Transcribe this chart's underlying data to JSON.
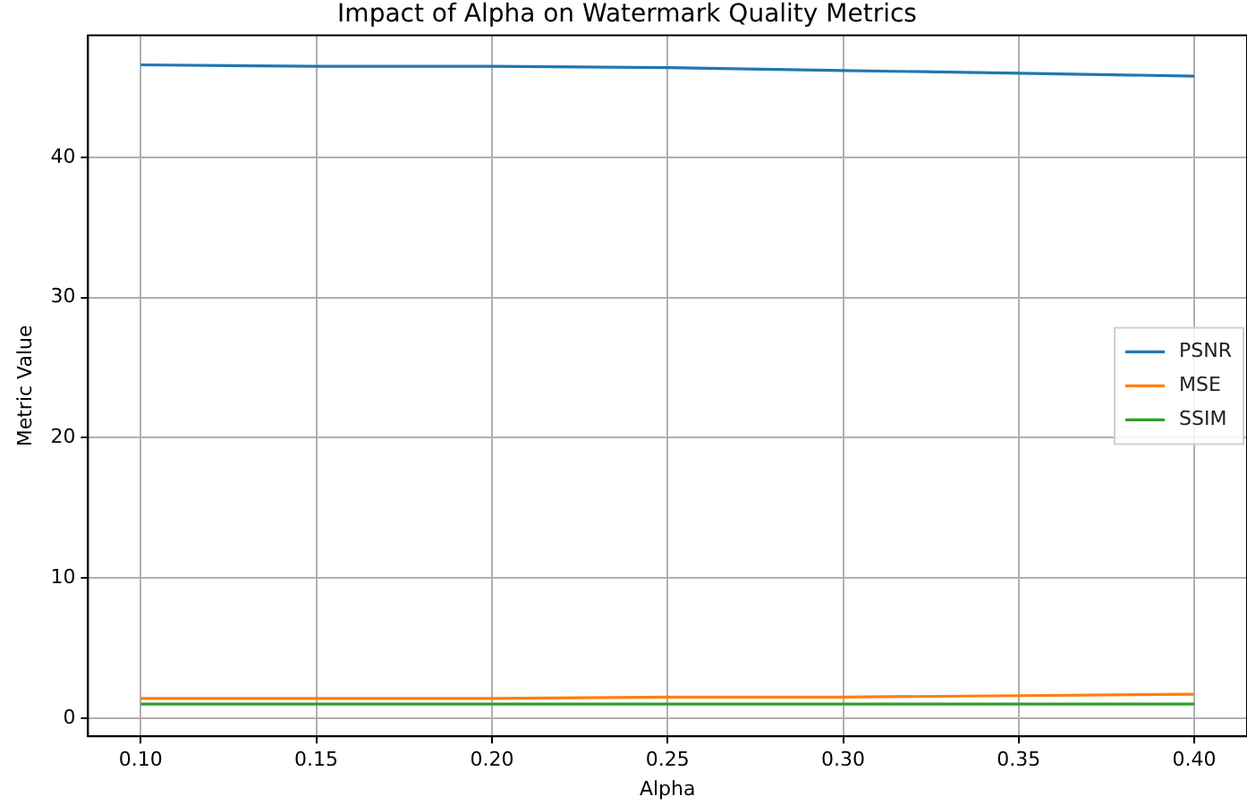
{
  "chart_data": {
    "type": "line",
    "title": "Impact of Alpha on Watermark Quality Metrics",
    "xlabel": "Alpha",
    "ylabel": "Metric Value",
    "x": [
      0.1,
      0.15,
      0.2,
      0.25,
      0.3,
      0.35,
      0.4
    ],
    "series": [
      {
        "name": "PSNR",
        "color": "#1f77b4",
        "values": [
          46.6,
          46.5,
          46.5,
          46.4,
          46.2,
          46.0,
          45.8
        ]
      },
      {
        "name": "MSE",
        "color": "#ff7f0e",
        "values": [
          1.4,
          1.4,
          1.4,
          1.5,
          1.5,
          1.6,
          1.7
        ]
      },
      {
        "name": "SSIM",
        "color": "#2ca02c",
        "values": [
          1.0,
          1.0,
          1.0,
          1.0,
          1.0,
          1.0,
          1.0
        ]
      }
    ],
    "xlim": [
      0.085,
      0.415
    ],
    "xticks": [
      {
        "value": 0.1,
        "label": "0.10"
      },
      {
        "value": 0.15,
        "label": "0.15"
      },
      {
        "value": 0.2,
        "label": "0.20"
      },
      {
        "value": 0.25,
        "label": "0.25"
      },
      {
        "value": 0.3,
        "label": "0.30"
      },
      {
        "value": 0.35,
        "label": "0.35"
      },
      {
        "value": 0.4,
        "label": "0.40"
      }
    ],
    "ylim": [
      -1.3,
      48.7
    ],
    "yticks": [
      0,
      10,
      20,
      30,
      40
    ],
    "grid": true,
    "legend": "center right",
    "marker": "none",
    "line_style": "solid"
  }
}
